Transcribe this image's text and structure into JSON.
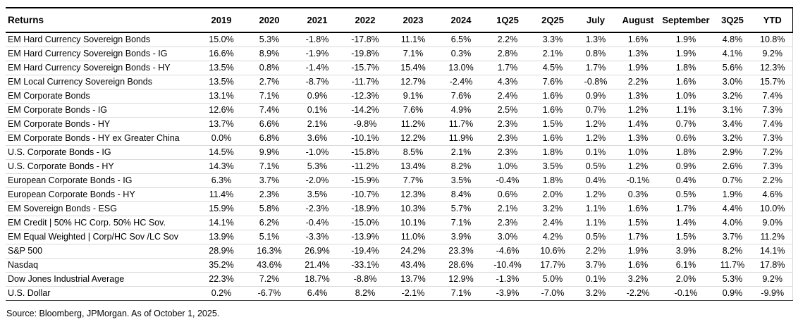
{
  "chart_data": {
    "type": "table",
    "title": "Returns",
    "corner_label": "Returns",
    "columns": [
      "2019",
      "2020",
      "2021",
      "2022",
      "2023",
      "2024",
      "1Q25",
      "2Q25",
      "July",
      "August",
      "September",
      "3Q25",
      "YTD"
    ],
    "rows": [
      {
        "name": "EM Hard Currency Sovereign Bonds",
        "values": [
          "15.0%",
          "5.3%",
          "-1.8%",
          "-17.8%",
          "11.1%",
          "6.5%",
          "2.2%",
          "3.3%",
          "1.3%",
          "1.6%",
          "1.9%",
          "4.8%",
          "10.8%"
        ]
      },
      {
        "name": "EM Hard Currency Sovereign Bonds - IG",
        "values": [
          "16.6%",
          "8.9%",
          "-1.9%",
          "-19.8%",
          "7.1%",
          "0.3%",
          "2.8%",
          "2.1%",
          "0.8%",
          "1.3%",
          "1.9%",
          "4.1%",
          "9.2%"
        ]
      },
      {
        "name": "EM Hard Currency Sovereign Bonds - HY",
        "values": [
          "13.5%",
          "0.8%",
          "-1.4%",
          "-15.7%",
          "15.4%",
          "13.0%",
          "1.7%",
          "4.5%",
          "1.7%",
          "1.9%",
          "1.8%",
          "5.6%",
          "12.3%"
        ]
      },
      {
        "name": "EM Local Currency Sovereign Bonds",
        "values": [
          "13.5%",
          "2.7%",
          "-8.7%",
          "-11.7%",
          "12.7%",
          "-2.4%",
          "4.3%",
          "7.6%",
          "-0.8%",
          "2.2%",
          "1.6%",
          "3.0%",
          "15.7%"
        ]
      },
      {
        "name": "EM Corporate Bonds",
        "values": [
          "13.1%",
          "7.1%",
          "0.9%",
          "-12.3%",
          "9.1%",
          "7.6%",
          "2.4%",
          "1.6%",
          "0.9%",
          "1.3%",
          "1.0%",
          "3.2%",
          "7.4%"
        ]
      },
      {
        "name": "EM Corporate Bonds - IG",
        "values": [
          "12.6%",
          "7.4%",
          "0.1%",
          "-14.2%",
          "7.6%",
          "4.9%",
          "2.5%",
          "1.6%",
          "0.7%",
          "1.2%",
          "1.1%",
          "3.1%",
          "7.3%"
        ]
      },
      {
        "name": "EM Corporate Bonds - HY",
        "values": [
          "13.7%",
          "6.6%",
          "2.1%",
          "-9.8%",
          "11.2%",
          "11.7%",
          "2.3%",
          "1.5%",
          "1.2%",
          "1.4%",
          "0.7%",
          "3.4%",
          "7.4%"
        ]
      },
      {
        "name": "EM Corporate Bonds - HY ex Greater China",
        "values": [
          "0.0%",
          "6.8%",
          "3.6%",
          "-10.1%",
          "12.2%",
          "11.9%",
          "2.3%",
          "1.6%",
          "1.2%",
          "1.3%",
          "0.6%",
          "3.2%",
          "7.3%"
        ]
      },
      {
        "name": "U.S. Corporate Bonds - IG",
        "values": [
          "14.5%",
          "9.9%",
          "-1.0%",
          "-15.8%",
          "8.5%",
          "2.1%",
          "2.3%",
          "1.8%",
          "0.1%",
          "1.0%",
          "1.8%",
          "2.9%",
          "7.2%"
        ]
      },
      {
        "name": "U.S. Corporate Bonds - HY",
        "values": [
          "14.3%",
          "7.1%",
          "5.3%",
          "-11.2%",
          "13.4%",
          "8.2%",
          "1.0%",
          "3.5%",
          "0.5%",
          "1.2%",
          "0.9%",
          "2.6%",
          "7.3%"
        ]
      },
      {
        "name": "European Corporate Bonds - IG",
        "values": [
          "6.3%",
          "3.7%",
          "-2.0%",
          "-15.9%",
          "7.7%",
          "3.5%",
          "-0.4%",
          "1.8%",
          "0.4%",
          "-0.1%",
          "0.4%",
          "0.7%",
          "2.2%"
        ]
      },
      {
        "name": "European Corporate Bonds - HY",
        "values": [
          "11.4%",
          "2.3%",
          "3.5%",
          "-10.7%",
          "12.3%",
          "8.4%",
          "0.6%",
          "2.0%",
          "1.2%",
          "0.3%",
          "0.5%",
          "1.9%",
          "4.6%"
        ]
      },
      {
        "name": "EM Sovereign Bonds - ESG",
        "values": [
          "15.9%",
          "5.8%",
          "-2.3%",
          "-18.9%",
          "10.3%",
          "5.7%",
          "2.1%",
          "3.2%",
          "1.1%",
          "1.6%",
          "1.7%",
          "4.4%",
          "10.0%"
        ]
      },
      {
        "name": "EM Credit | 50% HC Corp. 50% HC Sov.",
        "values": [
          "14.1%",
          "6.2%",
          "-0.4%",
          "-15.0%",
          "10.1%",
          "7.1%",
          "2.3%",
          "2.4%",
          "1.1%",
          "1.5%",
          "1.4%",
          "4.0%",
          "9.0%"
        ]
      },
      {
        "name": "EM Equal Weighted | Corp/HC Sov /LC Sov",
        "values": [
          "13.9%",
          "5.1%",
          "-3.3%",
          "-13.9%",
          "11.0%",
          "3.9%",
          "3.0%",
          "4.2%",
          "0.5%",
          "1.7%",
          "1.5%",
          "3.7%",
          "11.2%"
        ]
      },
      {
        "name": "S&P 500",
        "values": [
          "28.9%",
          "16.3%",
          "26.9%",
          "-19.4%",
          "24.2%",
          "23.3%",
          "-4.6%",
          "10.6%",
          "2.2%",
          "1.9%",
          "3.9%",
          "8.2%",
          "14.1%"
        ]
      },
      {
        "name": "Nasdaq",
        "values": [
          "35.2%",
          "43.6%",
          "21.4%",
          "-33.1%",
          "43.4%",
          "28.6%",
          "-10.4%",
          "17.7%",
          "3.7%",
          "1.6%",
          "6.1%",
          "11.7%",
          "17.8%"
        ]
      },
      {
        "name": "Dow Jones Industrial Average",
        "values": [
          "22.3%",
          "7.2%",
          "18.7%",
          "-8.8%",
          "13.7%",
          "12.9%",
          "-1.3%",
          "5.0%",
          "0.1%",
          "3.2%",
          "2.0%",
          "5.3%",
          "9.2%"
        ]
      },
      {
        "name": "U.S. Dollar",
        "values": [
          "0.2%",
          "-6.7%",
          "6.4%",
          "8.2%",
          "-2.1%",
          "7.1%",
          "-3.9%",
          "-7.0%",
          "3.2%",
          "-2.2%",
          "-0.1%",
          "0.9%",
          "-9.9%"
        ]
      }
    ]
  },
  "footer": {
    "source_note": "Source: Bloomberg, JPMorgan. As of October 1, 2025."
  },
  "colors": {
    "text": "#000000",
    "border_dark": "#000000",
    "row_divider": "#d9d9d9",
    "bottom_rule": "#404040",
    "background": "#ffffff"
  }
}
